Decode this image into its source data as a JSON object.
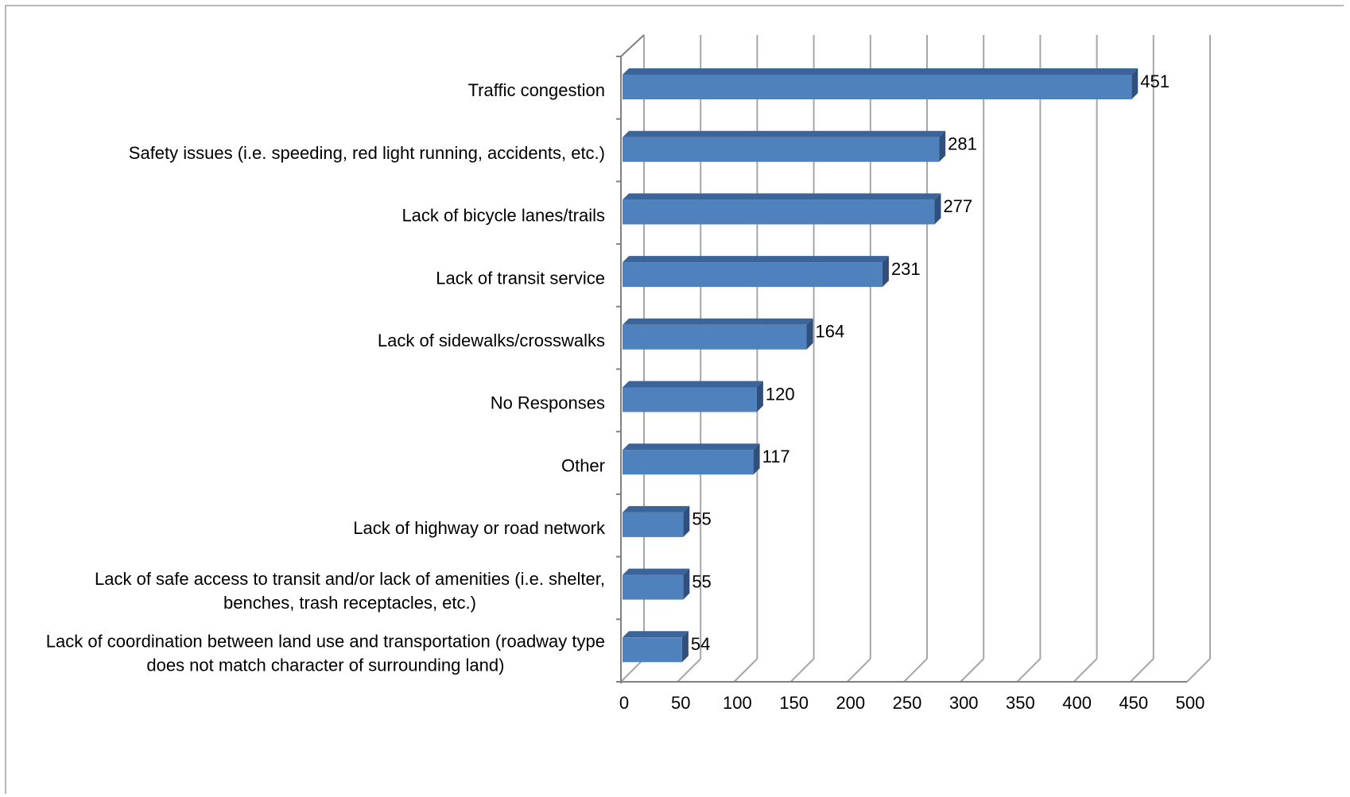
{
  "chart_data": {
    "type": "bar",
    "orientation": "horizontal",
    "style": "3d",
    "categories": [
      "Traffic congestion",
      "Safety issues (i.e. speeding, red light running, accidents, etc.)",
      "Lack of bicycle lanes/trails",
      "Lack of transit service",
      "Lack of sidewalks/crosswalks",
      "No Responses",
      "Other",
      "Lack of highway or road network",
      "Lack of safe access to transit and/or lack of amenities (i.e. shelter, benches, trash receptacles, etc.)",
      "Lack of coordination between land use and transportation (roadway type does not match character of surrounding land)"
    ],
    "category_lines": [
      [
        "Traffic congestion"
      ],
      [
        "Safety issues (i.e. speeding, red light running, accidents, etc.)"
      ],
      [
        "Lack of bicycle lanes/trails"
      ],
      [
        "Lack of transit service"
      ],
      [
        "Lack of sidewalks/crosswalks"
      ],
      [
        "No Responses"
      ],
      [
        "Other"
      ],
      [
        "Lack of highway or road network"
      ],
      [
        "Lack of safe access to transit and/or lack of amenities (i.e. shelter,",
        "benches, trash receptacles, etc.)"
      ],
      [
        "Lack of coordination between land use and transportation (roadway type",
        "does not match character of surrounding land)"
      ]
    ],
    "values": [
      451,
      281,
      277,
      231,
      164,
      120,
      117,
      55,
      55,
      54
    ],
    "data_labels": [
      "451",
      "281",
      "277",
      "231",
      "164",
      "120",
      "117",
      "55",
      "55",
      "54"
    ],
    "x_ticks": [
      "0",
      "50",
      "100",
      "150",
      "200",
      "250",
      "300",
      "350",
      "400",
      "450",
      "500"
    ],
    "xlim": [
      0,
      500
    ],
    "grid": true,
    "legend": "none",
    "title": "",
    "xlabel": "",
    "ylabel": "",
    "colors": {
      "bar_front": "#4f81bd",
      "bar_top": "#3a649a",
      "bar_side": "#2f4f7c",
      "grid": "#a6a6a6",
      "axis": "#808080"
    }
  }
}
